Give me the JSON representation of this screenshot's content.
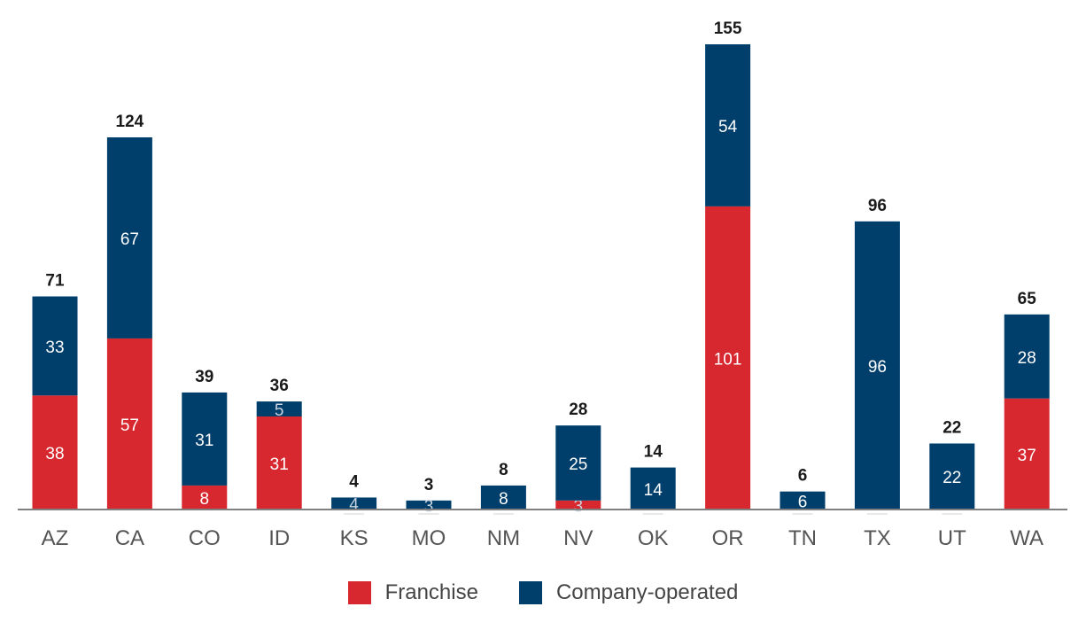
{
  "chart_data": {
    "type": "bar",
    "stacked": true,
    "categories": [
      "AZ",
      "CA",
      "CO",
      "ID",
      "KS",
      "MO",
      "NM",
      "NV",
      "OK",
      "OR",
      "TN",
      "TX",
      "UT",
      "WA"
    ],
    "series": [
      {
        "name": "Franchise",
        "color": "#d7282f",
        "values": [
          38,
          57,
          8,
          31,
          0,
          0,
          0,
          3,
          0,
          101,
          0,
          0,
          0,
          37
        ]
      },
      {
        "name": "Company-operated",
        "color": "#003f6b",
        "values": [
          33,
          67,
          31,
          5,
          4,
          3,
          8,
          25,
          14,
          54,
          6,
          96,
          22,
          28
        ]
      }
    ],
    "totals": [
      71,
      124,
      39,
      36,
      4,
      3,
      8,
      28,
      14,
      155,
      6,
      96,
      22,
      65
    ],
    "ylim": [
      0,
      155
    ],
    "legend_position": "bottom",
    "grid": false
  }
}
